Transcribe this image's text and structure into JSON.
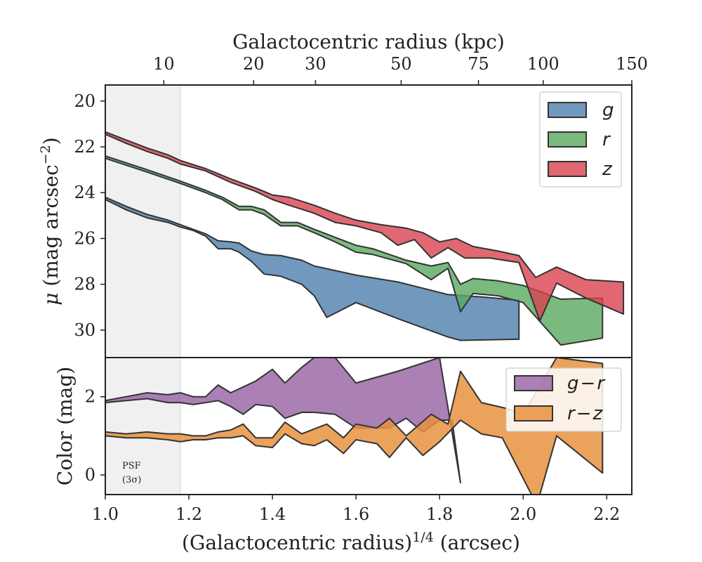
{
  "chart_data": [
    {
      "type": "area",
      "panel": "surface-brightness",
      "x_scale": "linear",
      "xlim": [
        1.0,
        2.26
      ],
      "ylim": [
        31.2,
        19.3
      ],
      "y_inverted": true,
      "ylabel_prefix": "μ",
      "ylabel_text": " (mag arcsec",
      "ylabel_sup": "−2",
      "ylabel_suffix": ")",
      "y_ticks": [
        20,
        22,
        24,
        26,
        28,
        30
      ],
      "top_axis": {
        "label": "Galactocentric radius (kpc)",
        "ticks": [
          {
            "label": "10",
            "x": 1.14
          },
          {
            "label": "20",
            "x": 1.355
          },
          {
            "label": "30",
            "x": 1.503
          },
          {
            "label": "50",
            "x": 1.708
          },
          {
            "label": "75",
            "x": 1.893
          },
          {
            "label": "100",
            "x": 2.048
          },
          {
            "label": "150",
            "x": 2.26
          }
        ]
      },
      "grid": false,
      "legend_position": "top-right",
      "series": [
        {
          "name": "g",
          "color": "#4e7fad",
          "upper": [
            [
              1.0,
              24.2
            ],
            [
              1.05,
              24.6
            ],
            [
              1.1,
              24.95
            ],
            [
              1.15,
              25.2
            ],
            [
              1.18,
              25.4
            ],
            [
              1.21,
              25.6
            ],
            [
              1.24,
              25.8
            ],
            [
              1.27,
              26.1
            ],
            [
              1.3,
              26.15
            ],
            [
              1.32,
              26.2
            ],
            [
              1.35,
              26.55
            ],
            [
              1.38,
              26.7
            ],
            [
              1.42,
              26.75
            ],
            [
              1.47,
              26.95
            ],
            [
              1.5,
              27.2
            ],
            [
              1.6,
              27.6
            ],
            [
              1.7,
              27.9
            ],
            [
              1.82,
              28.45
            ],
            [
              1.9,
              28.55
            ],
            [
              1.99,
              28.7
            ]
          ],
          "lower": [
            [
              1.0,
              24.3
            ],
            [
              1.05,
              24.75
            ],
            [
              1.1,
              25.1
            ],
            [
              1.15,
              25.3
            ],
            [
              1.18,
              25.5
            ],
            [
              1.21,
              25.65
            ],
            [
              1.24,
              25.9
            ],
            [
              1.27,
              26.45
            ],
            [
              1.3,
              26.45
            ],
            [
              1.32,
              26.6
            ],
            [
              1.35,
              27.0
            ],
            [
              1.38,
              27.55
            ],
            [
              1.42,
              27.65
            ],
            [
              1.47,
              28.0
            ],
            [
              1.5,
              28.5
            ],
            [
              1.53,
              29.45
            ],
            [
              1.6,
              28.8
            ],
            [
              1.7,
              29.5
            ],
            [
              1.82,
              30.3
            ],
            [
              1.85,
              30.45
            ],
            [
              1.99,
              30.4
            ]
          ]
        },
        {
          "name": "r",
          "color": "#5aa95f",
          "upper": [
            [
              1.0,
              22.4
            ],
            [
              1.1,
              23.0
            ],
            [
              1.18,
              23.5
            ],
            [
              1.24,
              23.9
            ],
            [
              1.28,
              24.2
            ],
            [
              1.32,
              24.6
            ],
            [
              1.35,
              24.6
            ],
            [
              1.38,
              24.75
            ],
            [
              1.42,
              25.3
            ],
            [
              1.46,
              25.3
            ],
            [
              1.5,
              25.6
            ],
            [
              1.55,
              25.95
            ],
            [
              1.6,
              26.3
            ],
            [
              1.64,
              26.45
            ],
            [
              1.72,
              26.95
            ],
            [
              1.78,
              27.2
            ],
            [
              1.82,
              27.05
            ],
            [
              1.85,
              28.0
            ],
            [
              1.88,
              27.75
            ],
            [
              1.94,
              27.85
            ],
            [
              2.0,
              28.05
            ],
            [
              2.09,
              28.65
            ],
            [
              2.19,
              28.6
            ]
          ],
          "lower": [
            [
              1.0,
              22.5
            ],
            [
              1.1,
              23.1
            ],
            [
              1.18,
              23.6
            ],
            [
              1.24,
              24.0
            ],
            [
              1.28,
              24.3
            ],
            [
              1.32,
              24.75
            ],
            [
              1.35,
              24.75
            ],
            [
              1.38,
              24.95
            ],
            [
              1.42,
              25.45
            ],
            [
              1.46,
              25.45
            ],
            [
              1.5,
              25.75
            ],
            [
              1.55,
              26.15
            ],
            [
              1.6,
              26.6
            ],
            [
              1.64,
              26.7
            ],
            [
              1.72,
              27.1
            ],
            [
              1.78,
              27.8
            ],
            [
              1.82,
              27.3
            ],
            [
              1.85,
              29.2
            ],
            [
              1.88,
              28.4
            ],
            [
              1.94,
              28.5
            ],
            [
              2.0,
              28.8
            ],
            [
              2.09,
              30.65
            ],
            [
              2.19,
              30.35
            ]
          ]
        },
        {
          "name": "z",
          "color": "#d9424f",
          "upper": [
            [
              1.0,
              21.35
            ],
            [
              1.05,
              21.7
            ],
            [
              1.1,
              22.05
            ],
            [
              1.15,
              22.35
            ],
            [
              1.18,
              22.6
            ],
            [
              1.24,
              22.95
            ],
            [
              1.3,
              23.4
            ],
            [
              1.36,
              23.8
            ],
            [
              1.4,
              24.1
            ],
            [
              1.44,
              24.2
            ],
            [
              1.5,
              24.55
            ],
            [
              1.55,
              24.9
            ],
            [
              1.6,
              25.2
            ],
            [
              1.66,
              25.4
            ],
            [
              1.72,
              25.55
            ],
            [
              1.76,
              25.75
            ],
            [
              1.8,
              26.15
            ],
            [
              1.84,
              26.0
            ],
            [
              1.88,
              26.35
            ],
            [
              1.94,
              26.55
            ],
            [
              1.99,
              26.75
            ],
            [
              2.03,
              27.7
            ],
            [
              2.08,
              27.25
            ],
            [
              2.15,
              27.8
            ],
            [
              2.24,
              27.9
            ]
          ],
          "lower": [
            [
              1.0,
              21.45
            ],
            [
              1.05,
              21.85
            ],
            [
              1.1,
              22.2
            ],
            [
              1.15,
              22.5
            ],
            [
              1.18,
              22.75
            ],
            [
              1.24,
              23.05
            ],
            [
              1.3,
              23.55
            ],
            [
              1.36,
              23.95
            ],
            [
              1.4,
              24.3
            ],
            [
              1.44,
              24.55
            ],
            [
              1.5,
              24.9
            ],
            [
              1.55,
              25.3
            ],
            [
              1.6,
              25.45
            ],
            [
              1.66,
              25.75
            ],
            [
              1.7,
              26.3
            ],
            [
              1.74,
              26.05
            ],
            [
              1.78,
              26.85
            ],
            [
              1.82,
              26.4
            ],
            [
              1.86,
              26.85
            ],
            [
              1.92,
              26.85
            ],
            [
              1.99,
              27.05
            ],
            [
              2.04,
              29.6
            ],
            [
              2.08,
              27.95
            ],
            [
              2.15,
              28.6
            ],
            [
              2.24,
              29.3
            ]
          ]
        }
      ]
    },
    {
      "type": "area",
      "panel": "color",
      "xlim": [
        1.0,
        2.26
      ],
      "ylim": [
        -0.5,
        3.0
      ],
      "xlabel": "(Galactocentric radius)",
      "xlabel_sup": "1/4",
      "xlabel_suffix": " (arcsec)",
      "ylabel": "Color (mag)",
      "x_ticks": [
        "1.0",
        "1.2",
        "1.4",
        "1.6",
        "1.8",
        "2.0",
        "2.2"
      ],
      "y_ticks": [
        "0",
        "2"
      ],
      "grid": false,
      "legend_position": "top-right",
      "psf_region": {
        "x": [
          1.0,
          1.18
        ],
        "label_line1": "PSF",
        "label_line2": "(3σ)"
      },
      "series": [
        {
          "name": "g − r",
          "legend_left": "g",
          "legend_op": "−",
          "legend_right": "r",
          "color": "#9b6aa8",
          "upper": [
            [
              1.0,
              1.9
            ],
            [
              1.05,
              2.0
            ],
            [
              1.1,
              2.1
            ],
            [
              1.15,
              2.05
            ],
            [
              1.18,
              2.1
            ],
            [
              1.21,
              2.0
            ],
            [
              1.24,
              2.0
            ],
            [
              1.27,
              2.3
            ],
            [
              1.3,
              2.1
            ],
            [
              1.36,
              2.4
            ],
            [
              1.4,
              2.7
            ],
            [
              1.43,
              2.35
            ],
            [
              1.47,
              2.75
            ],
            [
              1.5,
              3.0
            ],
            [
              1.55,
              3.0
            ],
            [
              1.6,
              2.35
            ],
            [
              1.7,
              2.65
            ],
            [
              1.8,
              3.0
            ],
            [
              1.85,
              -0.2
            ]
          ],
          "lower": [
            [
              1.0,
              1.85
            ],
            [
              1.05,
              1.9
            ],
            [
              1.1,
              1.95
            ],
            [
              1.15,
              1.85
            ],
            [
              1.18,
              1.85
            ],
            [
              1.21,
              1.8
            ],
            [
              1.24,
              1.85
            ],
            [
              1.27,
              1.9
            ],
            [
              1.3,
              1.75
            ],
            [
              1.33,
              1.55
            ],
            [
              1.36,
              1.8
            ],
            [
              1.4,
              1.75
            ],
            [
              1.43,
              1.45
            ],
            [
              1.47,
              1.6
            ],
            [
              1.5,
              1.6
            ],
            [
              1.55,
              1.55
            ],
            [
              1.6,
              1.2
            ],
            [
              1.68,
              1.2
            ],
            [
              1.72,
              1.45
            ],
            [
              1.76,
              1.1
            ],
            [
              1.8,
              1.4
            ],
            [
              1.83,
              1.4
            ],
            [
              1.85,
              -0.2
            ]
          ]
        },
        {
          "name": "r − z",
          "legend_left": "r",
          "legend_op": "−",
          "legend_right": "z",
          "color": "#e8923e",
          "upper": [
            [
              1.0,
              1.1
            ],
            [
              1.05,
              1.05
            ],
            [
              1.1,
              1.1
            ],
            [
              1.15,
              1.05
            ],
            [
              1.18,
              1.05
            ],
            [
              1.21,
              1.0
            ],
            [
              1.24,
              1.0
            ],
            [
              1.27,
              1.1
            ],
            [
              1.3,
              1.15
            ],
            [
              1.33,
              1.3
            ],
            [
              1.36,
              0.95
            ],
            [
              1.4,
              0.95
            ],
            [
              1.43,
              1.35
            ],
            [
              1.47,
              1.05
            ],
            [
              1.53,
              1.3
            ],
            [
              1.57,
              0.95
            ],
            [
              1.6,
              1.3
            ],
            [
              1.65,
              1.2
            ],
            [
              1.68,
              1.45
            ],
            [
              1.72,
              1.0
            ],
            [
              1.78,
              1.55
            ],
            [
              1.82,
              1.3
            ],
            [
              1.85,
              2.65
            ],
            [
              1.9,
              1.85
            ],
            [
              1.96,
              1.7
            ],
            [
              2.0,
              1.55
            ],
            [
              2.08,
              3.0
            ],
            [
              2.19,
              2.85
            ]
          ],
          "lower": [
            [
              1.0,
              1.0
            ],
            [
              1.05,
              0.95
            ],
            [
              1.1,
              0.95
            ],
            [
              1.15,
              0.9
            ],
            [
              1.18,
              0.85
            ],
            [
              1.21,
              0.9
            ],
            [
              1.24,
              0.9
            ],
            [
              1.27,
              0.95
            ],
            [
              1.3,
              0.95
            ],
            [
              1.33,
              1.0
            ],
            [
              1.36,
              0.75
            ],
            [
              1.4,
              0.7
            ],
            [
              1.43,
              1.05
            ],
            [
              1.47,
              0.8
            ],
            [
              1.5,
              0.75
            ],
            [
              1.53,
              0.9
            ],
            [
              1.57,
              0.55
            ],
            [
              1.6,
              0.9
            ],
            [
              1.65,
              0.8
            ],
            [
              1.68,
              0.45
            ],
            [
              1.72,
              0.95
            ],
            [
              1.76,
              0.5
            ],
            [
              1.8,
              0.85
            ],
            [
              1.85,
              1.4
            ],
            [
              1.9,
              1.05
            ],
            [
              1.95,
              0.95
            ],
            [
              2.02,
              -0.5
            ],
            [
              2.04,
              -0.5
            ],
            [
              2.08,
              1.0
            ],
            [
              2.19,
              0.05
            ]
          ]
        }
      ]
    }
  ]
}
